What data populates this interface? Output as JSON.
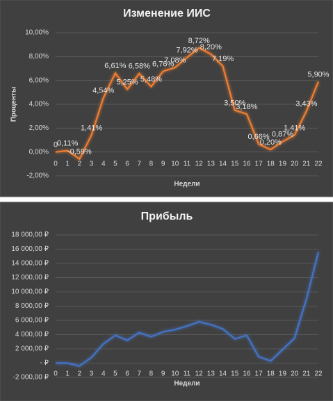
{
  "chart_data": [
    {
      "type": "line",
      "title": "Изменение ИИС",
      "xlabel": "Недели",
      "ylabel": "Проценты",
      "x": [
        0,
        1,
        2,
        3,
        4,
        5,
        6,
        7,
        8,
        9,
        10,
        11,
        12,
        13,
        14,
        15,
        16,
        17,
        18,
        19,
        20,
        21,
        22
      ],
      "xlim": [
        0,
        22
      ],
      "series": [
        {
          "name": "Изменение ИИС",
          "color": "#ed7d31",
          "values": [
            0,
            0.11,
            -0.59,
            1.41,
            4.54,
            6.61,
            5.25,
            6.58,
            5.48,
            6.76,
            7.08,
            7.92,
            8.72,
            8.2,
            7.19,
            3.5,
            3.18,
            0.66,
            0.2,
            0.87,
            1.41,
            3.43,
            5.9
          ],
          "value_labels": [
            "0",
            "0,11%",
            "-0,59%",
            "1,41%",
            "4,54%",
            "6,61%",
            "5,25%",
            "6,58%",
            "5,48%",
            "6,76%",
            "7,08%",
            "7,92%",
            "8,72%",
            "8,20%",
            "7,19%",
            "3,50%",
            "3,18%",
            "0,66%",
            "0,20%",
            "0,87%",
            "1,41%",
            "3,43%",
            "5,90%"
          ]
        }
      ],
      "ylim": [
        -2,
        10
      ],
      "yticks": [
        {
          "value": -2,
          "label": "-2,00%"
        },
        {
          "value": 0,
          "label": "0,00%"
        },
        {
          "value": 2,
          "label": "2,00%"
        },
        {
          "value": 4,
          "label": "4,00%"
        },
        {
          "value": 6,
          "label": "6,00%"
        },
        {
          "value": 8,
          "label": "8,00%"
        },
        {
          "value": 10,
          "label": "10,00%"
        }
      ],
      "grid": true
    },
    {
      "type": "line",
      "title": "Прибыль",
      "xlabel": "Недели",
      "x": [
        0,
        1,
        2,
        3,
        4,
        5,
        6,
        7,
        8,
        9,
        10,
        11,
        12,
        13,
        14,
        15,
        16,
        17,
        18,
        19,
        20,
        21,
        22
      ],
      "xlim": [
        0,
        22
      ],
      "series": [
        {
          "name": "Прибыль",
          "color": "#4472c4",
          "values": [
            0,
            0,
            -400,
            800,
            2700,
            3900,
            3200,
            4300,
            3700,
            4400,
            4700,
            5200,
            5800,
            5400,
            4800,
            3400,
            3900,
            900,
            300,
            1900,
            3500,
            9000,
            15600
          ]
        }
      ],
      "ylim": [
        -2000,
        18000
      ],
      "yticks": [
        {
          "value": -2000,
          "label": "-2 000,00 ₽"
        },
        {
          "value": 0,
          "label": "- ₽"
        },
        {
          "value": 2000,
          "label": "2 000,00 ₽"
        },
        {
          "value": 4000,
          "label": "4 000,00 ₽"
        },
        {
          "value": 6000,
          "label": "6 000,00 ₽"
        },
        {
          "value": 8000,
          "label": "8 000,00 ₽"
        },
        {
          "value": 10000,
          "label": "10 000,00 ₽"
        },
        {
          "value": 12000,
          "label": "12 000,00 ₽"
        },
        {
          "value": 14000,
          "label": "14 000,00 ₽"
        },
        {
          "value": 16000,
          "label": "16 000,00 ₽"
        },
        {
          "value": 18000,
          "label": "18 000,00 ₽"
        }
      ],
      "grid": true
    }
  ]
}
